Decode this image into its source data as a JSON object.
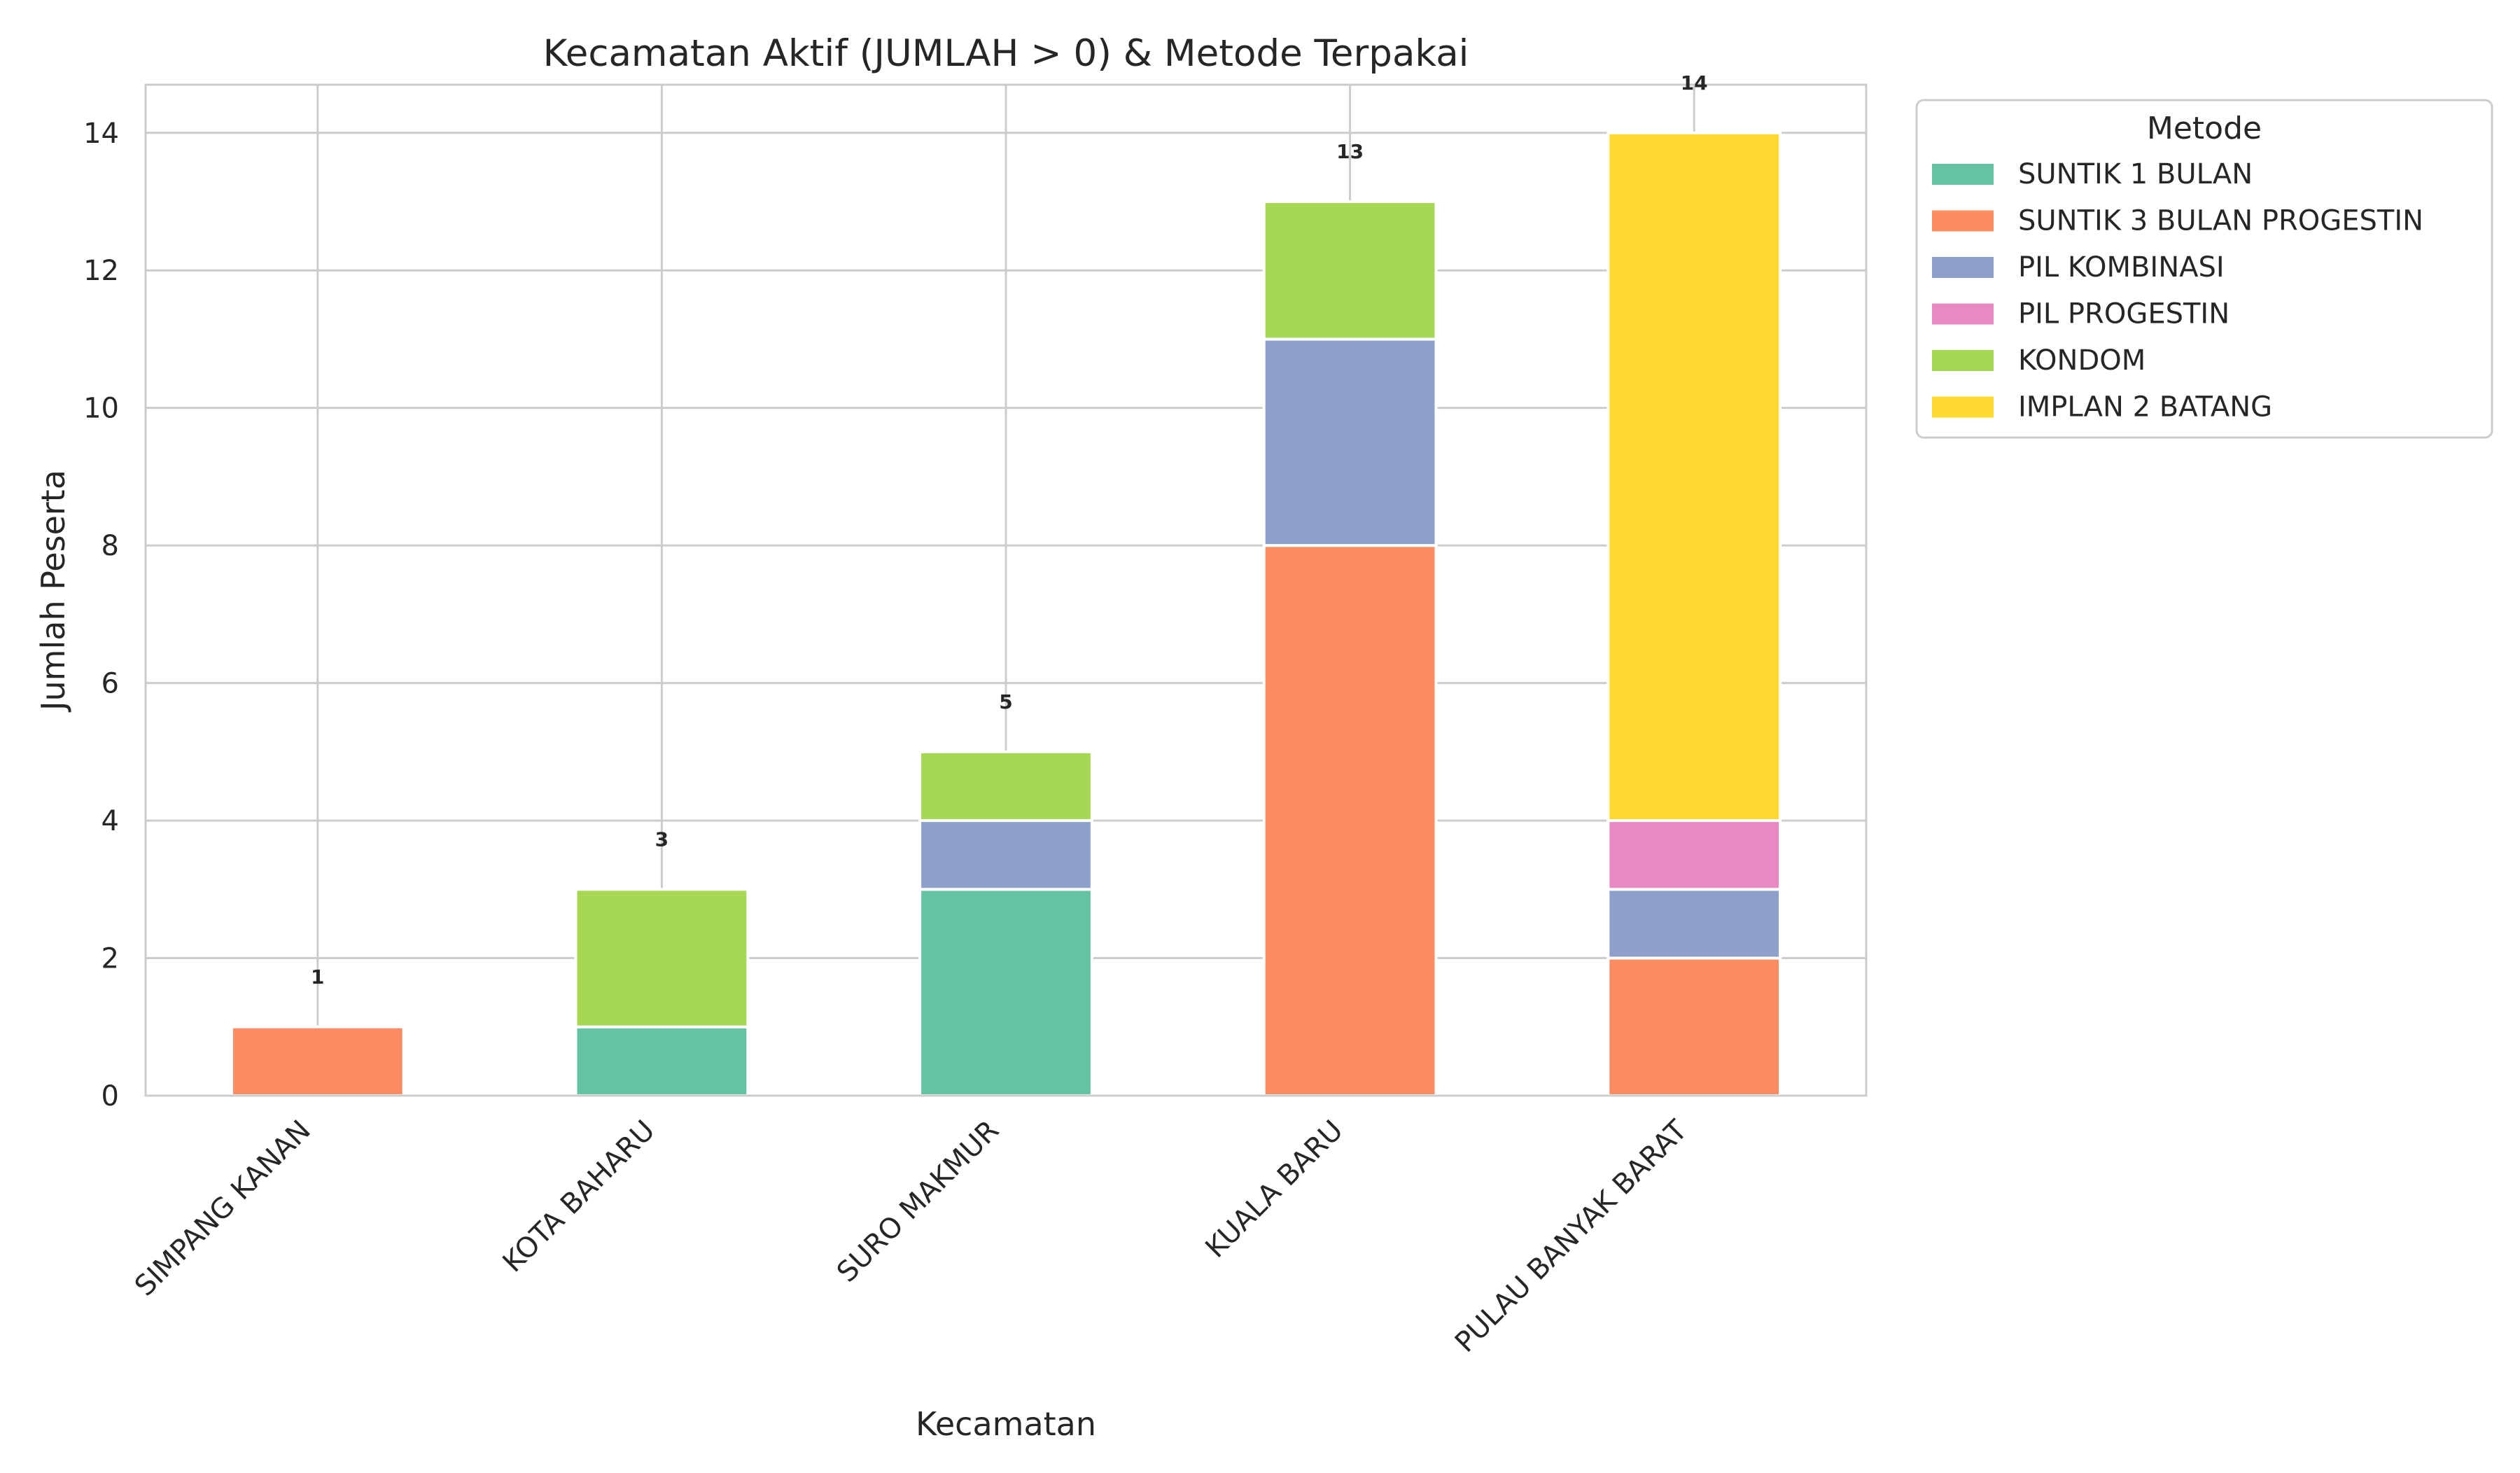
{
  "chart_data": {
    "type": "bar",
    "stacked": true,
    "title": "Kecamatan Aktif (JUMLAH > 0) & Metode Terpakai",
    "xlabel": "Kecamatan",
    "ylabel": "Jumlah Peserta",
    "categories": [
      "SIMPANG KANAN",
      "KOTA BAHARU",
      "SURO MAKMUR",
      "KUALA BARU",
      "PULAU BANYAK BARAT"
    ],
    "series": [
      {
        "name": "SUNTIK 1 BULAN",
        "color": "#66c2a5",
        "values": [
          0,
          1,
          3,
          0,
          0
        ]
      },
      {
        "name": "SUNTIK 3 BULAN PROGESTIN",
        "color": "#fc8d62",
        "values": [
          1,
          0,
          0,
          8,
          2
        ]
      },
      {
        "name": "PIL KOMBINASI",
        "color": "#8da0cb",
        "values": [
          0,
          0,
          1,
          3,
          1
        ]
      },
      {
        "name": "PIL PROGESTIN",
        "color": "#e78ac3",
        "values": [
          0,
          0,
          0,
          0,
          1
        ]
      },
      {
        "name": "KONDOM",
        "color": "#a6d854",
        "values": [
          0,
          2,
          1,
          2,
          0
        ]
      },
      {
        "name": "IMPLAN 2 BATANG",
        "color": "#ffd92f",
        "values": [
          0,
          0,
          0,
          0,
          10
        ]
      }
    ],
    "totals": [
      1,
      3,
      5,
      13,
      14
    ],
    "ylim": [
      0,
      14.7
    ],
    "yticks": [
      0,
      2,
      4,
      6,
      8,
      10,
      12,
      14
    ],
    "grid": true,
    "legend": {
      "title": "Metode",
      "placement": "outside-right-top"
    }
  }
}
